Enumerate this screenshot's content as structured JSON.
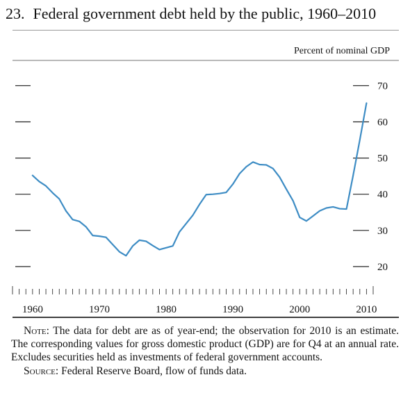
{
  "figure": {
    "number": "23.",
    "title": "Federal government debt held by the public, 1960–2010"
  },
  "chart_data": {
    "type": "line",
    "unit_label": "Percent of nominal GDP",
    "x": [
      1960,
      1961,
      1962,
      1963,
      1964,
      1965,
      1966,
      1967,
      1968,
      1969,
      1970,
      1971,
      1972,
      1973,
      1974,
      1975,
      1976,
      1977,
      1978,
      1979,
      1980,
      1981,
      1982,
      1983,
      1984,
      1985,
      1986,
      1987,
      1988,
      1989,
      1990,
      1991,
      1992,
      1993,
      1994,
      1995,
      1996,
      1997,
      1998,
      1999,
      2000,
      2001,
      2002,
      2003,
      2004,
      2005,
      2006,
      2007,
      2008,
      2009,
      2010
    ],
    "series": [
      {
        "values": [
          45.2,
          43.5,
          42.3,
          40.4,
          38.7,
          35.4,
          33.0,
          32.5,
          31.0,
          28.6,
          28.4,
          28.1,
          26.1,
          24.1,
          23.0,
          25.7,
          27.3,
          27.0,
          25.8,
          24.7,
          25.2,
          25.7,
          29.6,
          31.9,
          34.2,
          37.2,
          39.9,
          40.0,
          40.2,
          40.5,
          42.8,
          45.7,
          47.6,
          48.9,
          48.2,
          48.1,
          47.1,
          44.7,
          41.4,
          38.2,
          33.6,
          32.6,
          34.0,
          35.4,
          36.2,
          36.5,
          36.0,
          35.9,
          45.2,
          55.0,
          65.2
        ]
      }
    ],
    "xlim": [
      1957,
      2011
    ],
    "ylim": [
      10,
      72
    ],
    "x_ticks": [
      "1960",
      "1970",
      "1980",
      "1990",
      "2000",
      "2010"
    ],
    "y_ticks": [
      "20",
      "30",
      "40",
      "50",
      "60",
      "70"
    ],
    "line_color": "#3d8cc4",
    "grid": false
  },
  "notes": {
    "note_label": "Note:",
    "note_text": " The data for debt are as of year-end; the observation for 2010 is an estimate. The corresponding values for gross domestic product (GDP) are for Q4 at an annual rate. Excludes securities held as investments of federal government accounts.",
    "source_label": "Source:",
    "source_text": " Federal Reserve Board, flow of funds data."
  }
}
